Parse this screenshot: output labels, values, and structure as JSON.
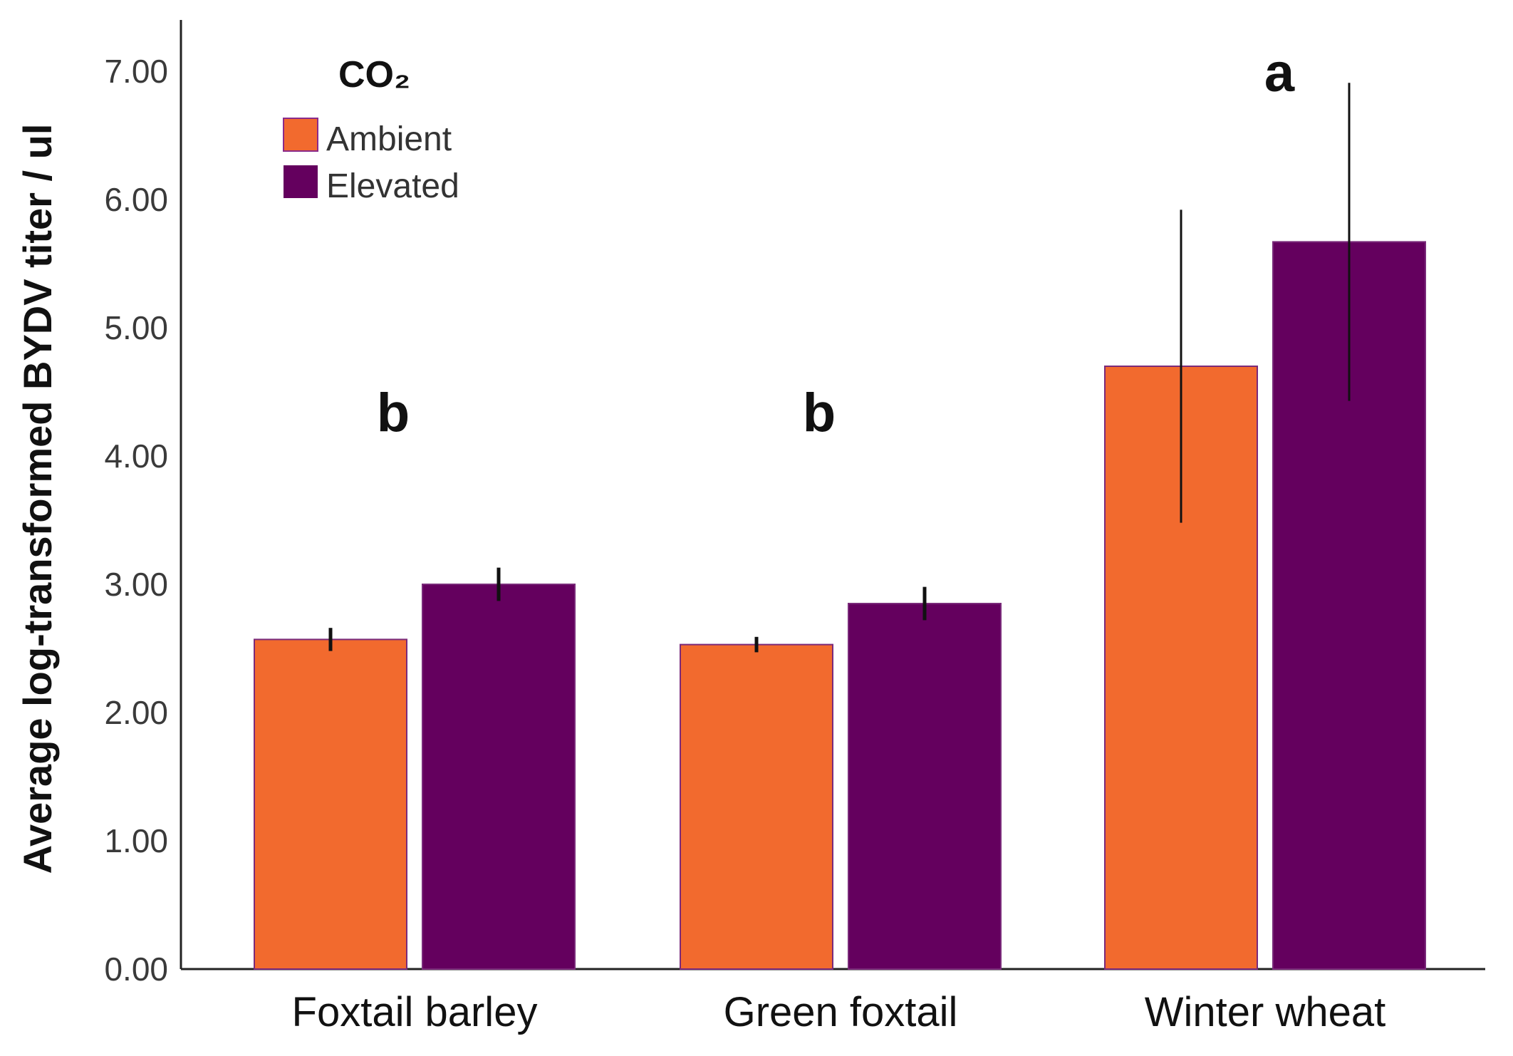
{
  "chart_data": {
    "type": "bar",
    "title": "",
    "xlabel": "",
    "ylabel": "Average log-transformed BYDV titer / ul",
    "ylim": [
      0,
      7.4
    ],
    "yticks": [
      "0.00",
      "1.00",
      "2.00",
      "3.00",
      "4.00",
      "5.00",
      "6.00",
      "7.00"
    ],
    "categories": [
      "Foxtail barley",
      "Green foxtail",
      "Winter wheat"
    ],
    "legend": {
      "title": "CO₂",
      "position": "top-left"
    },
    "series": [
      {
        "name": "Ambient",
        "color": "#F26A2E",
        "values": [
          2.57,
          2.53,
          4.7
        ],
        "error": [
          0.09,
          0.06,
          1.22
        ]
      },
      {
        "name": "Elevated",
        "color": "#64005E",
        "values": [
          3.0,
          2.85,
          5.67
        ],
        "error": [
          0.13,
          0.13,
          1.24
        ]
      }
    ],
    "annotations": [
      {
        "category": "Foxtail barley",
        "text": "b",
        "y": 4.35
      },
      {
        "category": "Green foxtail",
        "text": "b",
        "y": 4.35
      },
      {
        "category": "Winter wheat",
        "text": "a",
        "y": 7.0
      }
    ]
  }
}
